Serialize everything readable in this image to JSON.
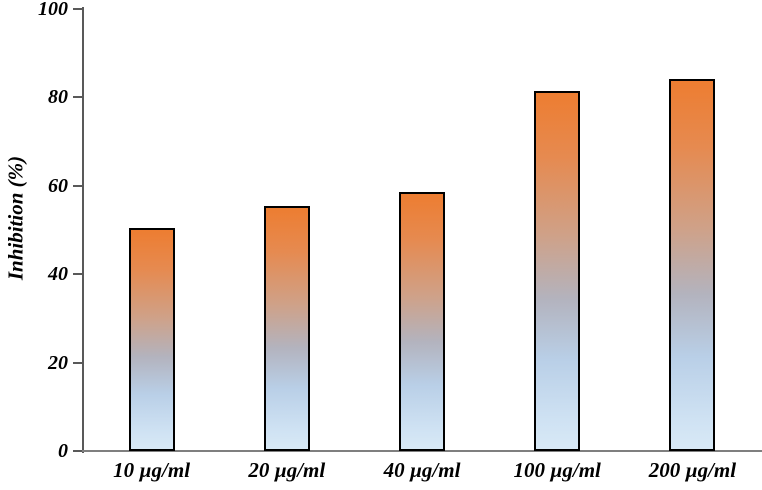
{
  "chart_data": {
    "type": "bar",
    "title": "",
    "xlabel": "",
    "ylabel": "Inhibition (%)",
    "categories": [
      "10 µg/ml",
      "20 µg/ml",
      "40 µg/ml",
      "100 µg/ml",
      "200 µg/ml"
    ],
    "values": [
      50.5,
      55.4,
      58.7,
      81.4,
      84.2
    ],
    "ylim": [
      0,
      100
    ],
    "yticks": [
      0,
      20,
      40,
      60,
      80,
      100
    ],
    "grid": false,
    "legend": null,
    "colors": {
      "bar_gradient_top": "#ED7D31",
      "bar_gradient_bottom": "#CFE2F3",
      "bar_border": "#000000",
      "y_axis_line": "#595959",
      "x_axis_line": "#7F7F7F",
      "text": "#000000",
      "background": "#FFFFFF"
    }
  }
}
